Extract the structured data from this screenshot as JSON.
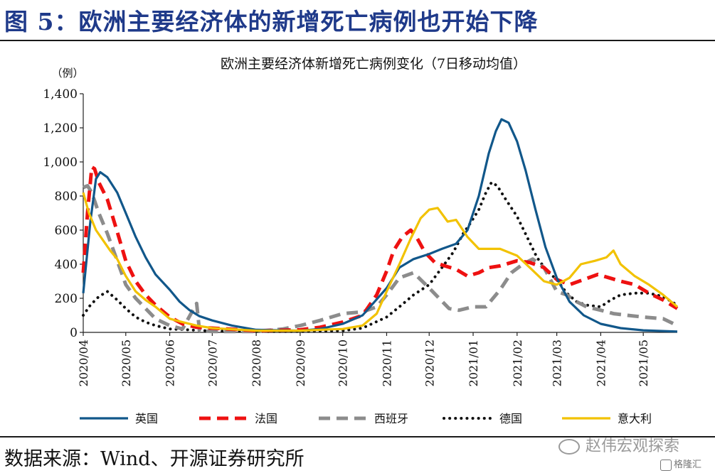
{
  "figure_title": "图 5：欧洲主要经济体的新增死亡病例也开始下降",
  "source": "数据来源：Wind、开源证券研究所",
  "watermark": "赵伟宏观探索",
  "corner_logo": "格隆汇",
  "colors": {
    "title": "#1f3a8a",
    "uk": "#11578a",
    "france": "#ee1111",
    "spain": "#8c8c8c",
    "germany": "#111111",
    "italy": "#f2c200"
  },
  "chart_data": {
    "type": "line",
    "title": "欧洲主要经济体新增死亡病例变化（7日移动均值）",
    "ylabel": "（例）",
    "ylim": [
      0,
      1400
    ],
    "yticks": [
      0,
      200,
      400,
      600,
      800,
      1000,
      1200,
      1400
    ],
    "ytick_labels": [
      "0",
      "200",
      "400",
      "600",
      "800",
      "1,000",
      "1,200",
      "1,400"
    ],
    "xlim": [
      "2020-04-01",
      "2021-05-25"
    ],
    "xticks": [
      "2020-04-01",
      "2020-05-01",
      "2020-06-01",
      "2020-07-01",
      "2020-08-01",
      "2020-09-01",
      "2020-10-01",
      "2020-11-01",
      "2020-12-01",
      "2021-01-01",
      "2021-02-01",
      "2021-03-01",
      "2021-04-01",
      "2021-05-01"
    ],
    "xtick_labels": [
      "2020/04",
      "2020/05",
      "2020/06",
      "2020/07",
      "2020/08",
      "2020/09",
      "2020/10",
      "2020/11",
      "2020/12",
      "2021/01",
      "2021/02",
      "2021/03",
      "2021/04",
      "2021/05"
    ],
    "legend_position": "bottom",
    "grid": false,
    "series": [
      {
        "key": "uk",
        "name": "英国",
        "style": "solid",
        "points": [
          [
            "2020-04-01",
            230
          ],
          [
            "2020-04-06",
            650
          ],
          [
            "2020-04-10",
            900
          ],
          [
            "2020-04-13",
            940
          ],
          [
            "2020-04-18",
            910
          ],
          [
            "2020-04-25",
            820
          ],
          [
            "2020-05-01",
            700
          ],
          [
            "2020-05-08",
            560
          ],
          [
            "2020-05-15",
            440
          ],
          [
            "2020-05-22",
            340
          ],
          [
            "2020-06-01",
            250
          ],
          [
            "2020-06-08",
            180
          ],
          [
            "2020-06-15",
            130
          ],
          [
            "2020-06-22",
            95
          ],
          [
            "2020-07-01",
            70
          ],
          [
            "2020-07-15",
            40
          ],
          [
            "2020-08-01",
            15
          ],
          [
            "2020-09-01",
            10
          ],
          [
            "2020-09-15",
            20
          ],
          [
            "2020-10-01",
            50
          ],
          [
            "2020-10-15",
            100
          ],
          [
            "2020-11-01",
            260
          ],
          [
            "2020-11-10",
            380
          ],
          [
            "2020-11-20",
            430
          ],
          [
            "2020-12-01",
            460
          ],
          [
            "2020-12-10",
            490
          ],
          [
            "2020-12-20",
            520
          ],
          [
            "2020-12-28",
            600
          ],
          [
            "2021-01-05",
            800
          ],
          [
            "2021-01-12",
            1050
          ],
          [
            "2021-01-17",
            1180
          ],
          [
            "2021-01-21",
            1250
          ],
          [
            "2021-01-26",
            1230
          ],
          [
            "2021-02-01",
            1120
          ],
          [
            "2021-02-07",
            950
          ],
          [
            "2021-02-14",
            720
          ],
          [
            "2021-02-21",
            500
          ],
          [
            "2021-03-01",
            320
          ],
          [
            "2021-03-10",
            180
          ],
          [
            "2021-03-20",
            100
          ],
          [
            "2021-04-01",
            50
          ],
          [
            "2021-04-15",
            25
          ],
          [
            "2021-05-01",
            12
          ],
          [
            "2021-05-25",
            5
          ]
        ]
      },
      {
        "key": "france",
        "name": "法国",
        "style": "dashed",
        "points": [
          [
            "2020-04-01",
            350
          ],
          [
            "2020-04-04",
            700
          ],
          [
            "2020-04-07",
            970
          ],
          [
            "2020-04-09",
            960
          ],
          [
            "2020-04-12",
            880
          ],
          [
            "2020-04-18",
            780
          ],
          [
            "2020-04-25",
            590
          ],
          [
            "2020-05-01",
            420
          ],
          [
            "2020-05-08",
            300
          ],
          [
            "2020-05-15",
            220
          ],
          [
            "2020-05-22",
            160
          ],
          [
            "2020-06-01",
            90
          ],
          [
            "2020-06-10",
            50
          ],
          [
            "2020-06-20",
            30
          ],
          [
            "2020-07-01",
            25
          ],
          [
            "2020-08-01",
            10
          ],
          [
            "2020-09-01",
            15
          ],
          [
            "2020-09-15",
            30
          ],
          [
            "2020-10-01",
            60
          ],
          [
            "2020-10-15",
            100
          ],
          [
            "2020-10-25",
            220
          ],
          [
            "2020-11-01",
            360
          ],
          [
            "2020-11-06",
            480
          ],
          [
            "2020-11-12",
            560
          ],
          [
            "2020-11-18",
            600
          ],
          [
            "2020-11-22",
            560
          ],
          [
            "2020-11-28",
            470
          ],
          [
            "2020-12-05",
            410
          ],
          [
            "2020-12-12",
            390
          ],
          [
            "2020-12-20",
            370
          ],
          [
            "2020-12-28",
            330
          ],
          [
            "2021-01-05",
            350
          ],
          [
            "2021-01-12",
            380
          ],
          [
            "2021-01-20",
            390
          ],
          [
            "2021-02-01",
            420
          ],
          [
            "2021-02-10",
            410
          ],
          [
            "2021-02-20",
            380
          ],
          [
            "2021-03-01",
            310
          ],
          [
            "2021-03-10",
            280
          ],
          [
            "2021-03-20",
            310
          ],
          [
            "2021-03-30",
            340
          ],
          [
            "2021-04-07",
            320
          ],
          [
            "2021-04-15",
            300
          ],
          [
            "2021-04-25",
            280
          ],
          [
            "2021-05-05",
            230
          ],
          [
            "2021-05-15",
            190
          ],
          [
            "2021-05-25",
            140
          ]
        ]
      },
      {
        "key": "spain",
        "name": "西班牙",
        "style": "dashed",
        "points": [
          [
            "2020-04-01",
            850
          ],
          [
            "2020-04-04",
            860
          ],
          [
            "2020-04-07",
            820
          ],
          [
            "2020-04-12",
            700
          ],
          [
            "2020-04-18",
            580
          ],
          [
            "2020-04-25",
            420
          ],
          [
            "2020-05-01",
            280
          ],
          [
            "2020-05-08",
            200
          ],
          [
            "2020-05-15",
            140
          ],
          [
            "2020-05-22",
            80
          ],
          [
            "2020-06-01",
            40
          ],
          [
            "2020-06-10",
            20
          ],
          [
            "2020-06-20",
            170
          ],
          [
            "2020-06-22",
            10
          ],
          [
            "2020-07-01",
            5
          ],
          [
            "2020-08-01",
            5
          ],
          [
            "2020-08-20",
            20
          ],
          [
            "2020-09-01",
            40
          ],
          [
            "2020-09-15",
            70
          ],
          [
            "2020-10-01",
            110
          ],
          [
            "2020-10-15",
            120
          ],
          [
            "2020-10-25",
            150
          ],
          [
            "2020-11-01",
            220
          ],
          [
            "2020-11-10",
            320
          ],
          [
            "2020-11-20",
            350
          ],
          [
            "2020-12-01",
            260
          ],
          [
            "2020-12-08",
            200
          ],
          [
            "2020-12-15",
            140
          ],
          [
            "2020-12-22",
            130
          ],
          [
            "2021-01-01",
            150
          ],
          [
            "2021-01-10",
            150
          ],
          [
            "2021-01-20",
            250
          ],
          [
            "2021-01-28",
            350
          ],
          [
            "2021-02-05",
            400
          ],
          [
            "2021-02-12",
            430
          ],
          [
            "2021-02-20",
            380
          ],
          [
            "2021-03-01",
            240
          ],
          [
            "2021-03-08",
            220
          ],
          [
            "2021-03-15",
            180
          ],
          [
            "2021-03-22",
            150
          ],
          [
            "2021-04-01",
            130
          ],
          [
            "2021-04-10",
            110
          ],
          [
            "2021-04-20",
            100
          ],
          [
            "2021-05-01",
            90
          ],
          [
            "2021-05-15",
            80
          ],
          [
            "2021-05-25",
            40
          ]
        ]
      },
      {
        "key": "germany",
        "name": "德国",
        "style": "dotted",
        "points": [
          [
            "2020-04-01",
            100
          ],
          [
            "2020-04-06",
            160
          ],
          [
            "2020-04-12",
            210
          ],
          [
            "2020-04-18",
            240
          ],
          [
            "2020-04-25",
            190
          ],
          [
            "2020-05-01",
            140
          ],
          [
            "2020-05-08",
            90
          ],
          [
            "2020-05-15",
            60
          ],
          [
            "2020-05-22",
            40
          ],
          [
            "2020-06-01",
            20
          ],
          [
            "2020-07-01",
            8
          ],
          [
            "2020-08-01",
            5
          ],
          [
            "2020-09-01",
            5
          ],
          [
            "2020-10-01",
            10
          ],
          [
            "2020-10-15",
            25
          ],
          [
            "2020-11-01",
            90
          ],
          [
            "2020-11-10",
            150
          ],
          [
            "2020-11-20",
            220
          ],
          [
            "2020-12-01",
            280
          ],
          [
            "2020-12-10",
            380
          ],
          [
            "2020-12-18",
            470
          ],
          [
            "2020-12-25",
            580
          ],
          [
            "2020-12-30",
            640
          ],
          [
            "2021-01-05",
            720
          ],
          [
            "2021-01-10",
            820
          ],
          [
            "2021-01-14",
            880
          ],
          [
            "2021-01-18",
            860
          ],
          [
            "2021-01-24",
            780
          ],
          [
            "2021-02-01",
            680
          ],
          [
            "2021-02-08",
            560
          ],
          [
            "2021-02-15",
            440
          ],
          [
            "2021-02-22",
            360
          ],
          [
            "2021-03-01",
            310
          ],
          [
            "2021-03-08",
            230
          ],
          [
            "2021-03-15",
            180
          ],
          [
            "2021-03-22",
            160
          ],
          [
            "2021-04-01",
            150
          ],
          [
            "2021-04-08",
            190
          ],
          [
            "2021-04-15",
            220
          ],
          [
            "2021-04-25",
            230
          ],
          [
            "2021-05-05",
            230
          ],
          [
            "2021-05-15",
            210
          ],
          [
            "2021-05-25",
            160
          ]
        ]
      },
      {
        "key": "italy",
        "name": "意大利",
        "style": "solid",
        "points": [
          [
            "2020-04-01",
            820
          ],
          [
            "2020-04-05",
            700
          ],
          [
            "2020-04-10",
            600
          ],
          [
            "2020-04-15",
            540
          ],
          [
            "2020-04-20",
            480
          ],
          [
            "2020-04-25",
            430
          ],
          [
            "2020-05-01",
            330
          ],
          [
            "2020-05-08",
            240
          ],
          [
            "2020-05-15",
            190
          ],
          [
            "2020-05-22",
            150
          ],
          [
            "2020-06-01",
            80
          ],
          [
            "2020-06-10",
            60
          ],
          [
            "2020-06-20",
            40
          ],
          [
            "2020-07-01",
            25
          ],
          [
            "2020-08-01",
            10
          ],
          [
            "2020-09-01",
            10
          ],
          [
            "2020-09-15",
            15
          ],
          [
            "2020-10-01",
            20
          ],
          [
            "2020-10-15",
            40
          ],
          [
            "2020-10-25",
            110
          ],
          [
            "2020-11-01",
            240
          ],
          [
            "2020-11-10",
            400
          ],
          [
            "2020-11-18",
            550
          ],
          [
            "2020-11-25",
            670
          ],
          [
            "2020-12-01",
            720
          ],
          [
            "2020-12-07",
            730
          ],
          [
            "2020-12-14",
            650
          ],
          [
            "2020-12-20",
            660
          ],
          [
            "2020-12-28",
            560
          ],
          [
            "2021-01-05",
            490
          ],
          [
            "2021-01-12",
            490
          ],
          [
            "2021-01-20",
            490
          ],
          [
            "2021-02-01",
            450
          ],
          [
            "2021-02-10",
            380
          ],
          [
            "2021-02-20",
            300
          ],
          [
            "2021-03-01",
            280
          ],
          [
            "2021-03-10",
            320
          ],
          [
            "2021-03-18",
            400
          ],
          [
            "2021-03-28",
            420
          ],
          [
            "2021-04-05",
            440
          ],
          [
            "2021-04-10",
            480
          ],
          [
            "2021-04-15",
            400
          ],
          [
            "2021-04-25",
            330
          ],
          [
            "2021-05-05",
            280
          ],
          [
            "2021-05-15",
            220
          ],
          [
            "2021-05-25",
            150
          ]
        ]
      }
    ]
  }
}
